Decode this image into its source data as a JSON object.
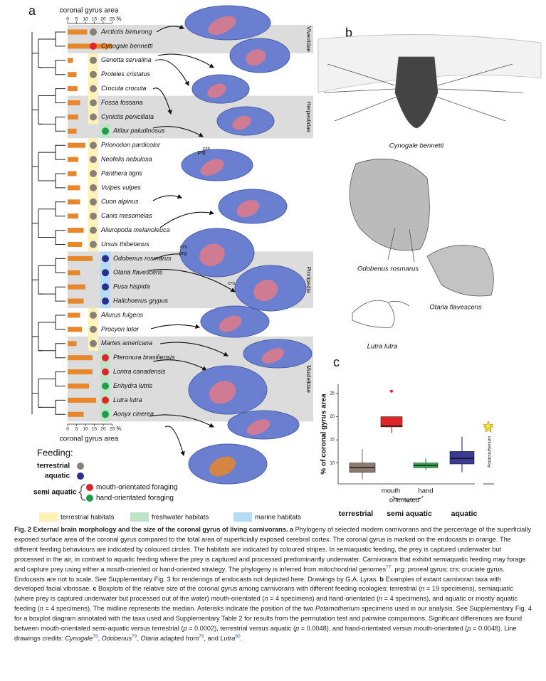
{
  "panel_labels": [
    "a",
    "b",
    "c"
  ],
  "panel_a": {
    "axis_title": "coronal gyrus area",
    "axis_ticks": [
      0,
      5,
      10,
      15,
      20,
      25
    ],
    "axis_unit": "%",
    "bar_color": "#e8862a",
    "clades": [
      {
        "family": "Viverridae",
        "species": [
          {
            "name": "Arctictis binturong",
            "area": 11,
            "circle_color": "#8a7f78",
            "stripe_color": null
          },
          {
            "name": "Cynogale bennetti",
            "area": 25,
            "circle_color": "#e0242a",
            "stripe_color": null
          }
        ]
      },
      {
        "species": [
          {
            "name": "Genetta servalina",
            "area": 3,
            "circle_color": "#8a7f78",
            "stripe_color": "#fdf3b8"
          },
          {
            "name": "Proteles cristatus",
            "area": 5,
            "circle_color": "#8a7f78",
            "stripe_color": "#fdf3b8"
          },
          {
            "name": "Crocuta crocuta",
            "area": 5.5,
            "circle_color": "#8a7f78",
            "stripe_color": "#fdf3b8"
          }
        ]
      },
      {
        "family": "Herpestidae",
        "species": [
          {
            "name": "Fossa fossana",
            "area": 7,
            "circle_color": "#8a7f78",
            "stripe_color": "#fdf3b8"
          },
          {
            "name": "Cynictis penicillata",
            "area": 6,
            "circle_color": "#8a7f78",
            "stripe_color": "#fdf3b8"
          },
          {
            "name": "Atilax paludinosus",
            "area": 5,
            "circle_color": "#1e9e4a",
            "stripe_color": "#bfe3c8"
          }
        ]
      },
      {
        "species": [
          {
            "name": "Prionodon pardicolor",
            "area": 10,
            "circle_color": "#8a7f78",
            "stripe_color": "#fdf3b8"
          },
          {
            "name": "Neofelis nebulosa",
            "area": 6,
            "circle_color": "#8a7f78",
            "stripe_color": "#fdf3b8"
          },
          {
            "name": "Panthera tigris",
            "area": 5,
            "circle_color": "#8a7f78",
            "stripe_color": "#fdf3b8"
          },
          {
            "name": "Vulpes vulpes",
            "area": 7,
            "circle_color": "#8a7f78",
            "stripe_color": "#fdf3b8"
          },
          {
            "name": "Cuon alpinus",
            "area": 7,
            "circle_color": "#8a7f78",
            "stripe_color": "#fdf3b8"
          },
          {
            "name": "Canis mesomelas",
            "area": 6,
            "circle_color": "#8a7f78",
            "stripe_color": "#fdf3b8"
          },
          {
            "name": "Ailuropoda melanoleuca",
            "area": 9,
            "circle_color": "#8a7f78",
            "stripe_color": "#fdf3b8"
          },
          {
            "name": "Ursus thibetanus",
            "area": 8,
            "circle_color": "#8a7f78",
            "stripe_color": "#fdf3b8"
          }
        ]
      },
      {
        "family": "Pinnipedia",
        "species": [
          {
            "name": "Odobenus rosmarus",
            "area": 14,
            "circle_color": "#2c2e8c",
            "stripe_color": "#b5dcf3"
          },
          {
            "name": "Otaria flavescens",
            "area": 7,
            "circle_color": "#2c2e8c",
            "stripe_color": "#b5dcf3"
          },
          {
            "name": "Pusa hispida",
            "area": 10,
            "circle_color": "#2c2e8c",
            "stripe_color": "#b5dcf3"
          },
          {
            "name": "Halichoerus grypus",
            "area": 9,
            "circle_color": "#2c2e8c",
            "stripe_color": "#b5dcf3"
          }
        ]
      },
      {
        "species": [
          {
            "name": "Ailurus fulgens",
            "area": 7,
            "circle_color": "#8a7f78",
            "stripe_color": "#fdf3b8"
          },
          {
            "name": "Procyon lotor",
            "area": 8,
            "circle_color": "#8a7f78",
            "stripe_color": "#fdf3b8"
          }
        ]
      },
      {
        "family": "Mustelidae",
        "species": [
          {
            "name": "Martes americana",
            "area": 5,
            "circle_color": "#8a7f78",
            "stripe_color": "#fdf3b8"
          },
          {
            "name": "Pteronura brasiliensis",
            "area": 14,
            "circle_color": "#e0242a",
            "stripe_color": "#bfe3c8"
          },
          {
            "name": "Lontra canadensis",
            "area": 14,
            "circle_color": "#e0242a",
            "stripe_color": "#bfe3c8"
          },
          {
            "name": "Enhydra lutris",
            "area": 12,
            "circle_color": "#1e9e4a",
            "stripe_color": "#bfe3c8"
          },
          {
            "name": "Lutra lutra",
            "area": 16,
            "circle_color": "#e0242a",
            "stripe_color": "#bfe3c8"
          },
          {
            "name": "Aonyx cinerea",
            "area": 9,
            "circle_color": "#1e9e4a",
            "stripe_color": "#bfe3c8"
          }
        ]
      }
    ],
    "brain_labels": [
      "prg",
      "crs",
      "crs",
      "prg",
      "crs"
    ],
    "feeding_legend": {
      "title": "Feeding:",
      "terrestrial": "terrestrial",
      "aquatic": "aquatic",
      "semi_aquatic": "semi aquatic",
      "mouth": "mouth-orientated foraging",
      "hand": "hand-orientated foraging"
    },
    "habitat_legend": [
      {
        "label": "terrestrial habitats",
        "color": "#fdf3b8"
      },
      {
        "label": "freshwater habitats",
        "color": "#bfe3c8"
      },
      {
        "label": "marine habitats",
        "color": "#b5dcf3"
      }
    ]
  },
  "panel_b": {
    "labels": [
      "Cynogale bennetti",
      "Odobenus rosmarus",
      "Otaria flavescens",
      "Lutra lutra"
    ]
  },
  "panel_c": {
    "ylabel": "% of coronal gyrus area",
    "ylim": [
      5.5,
      27
    ],
    "yticks": [
      10,
      15,
      20,
      25
    ],
    "boxes": [
      {
        "color": "#8a7a70",
        "min": 6.5,
        "q1": 8,
        "median": 9,
        "q3": 10,
        "max": 13,
        "outliers": []
      },
      {
        "color": "#e0242a",
        "min": 16.5,
        "q1": 17.8,
        "median": 18,
        "q3": 20,
        "max": 20,
        "outliers": [
          25.5
        ]
      },
      {
        "color": "#2fa84f",
        "min": 8.5,
        "q1": 9,
        "median": 9.5,
        "q3": 10,
        "max": 11,
        "outliers": []
      },
      {
        "color": "#3a3a92",
        "min": 8,
        "q1": 9.8,
        "median": 11,
        "q3": 12.5,
        "max": 15.7,
        "outliers": []
      }
    ],
    "sub_labels": [
      "mouth",
      "orientated",
      "hand"
    ],
    "group_labels": [
      "terrestrial",
      "semi aquatic",
      "aquatic"
    ],
    "potamotherium": {
      "label": "Potamotherium",
      "values": [
        17.5,
        18
      ],
      "color": "#f5e43a"
    }
  },
  "caption": {
    "runs": [
      {
        "t": "Fig. 2 External brain morphology and the size of the coronal gyrus of living carnivorans. a",
        "s": "b"
      },
      {
        "t": " Phylogeny of selected modern carnivorans and the percentage of the superficially exposed surface area of the coronal gyrus compared to the total area of superficially exposed cerebral cortex. The coronal gyrus is marked on the endocasts in orange. The different feeding behaviours are indicated by coloured circles. The habitats are indicated by coloured stripes. In semiaquatic feeding, the prey is captured underwater but processed in the air, in contrast to aquatic feeding where the prey is captured and processed predominantly underwater. Carnivorans that exhibit semiaquatic feeding may forage and capture prey using either a mouth-oriented or hand-oriented strategy. The phylogeny is inferred from mitochondrial genomes",
        "s": "n"
      },
      {
        "t": "77",
        "s": "sup"
      },
      {
        "t": ". prg: proreal gyrus; crs: cruciate gyrus. Endocasts are not to scale. See Supplementary Fig. 3 for renderings of endocasts not depicted here. Drawings by G.A. Lyras. ",
        "s": "n"
      },
      {
        "t": "b",
        "s": "b"
      },
      {
        "t": " Examples of extant carnivoran taxa with developed facial vibrissae. ",
        "s": "n"
      },
      {
        "t": "c",
        "s": "b"
      },
      {
        "t": " Boxplots of the relative size of the coronal gyrus among carnivorans with different feeding ecologies: terrestrial (",
        "s": "n"
      },
      {
        "t": "n",
        "s": "i"
      },
      {
        "t": " = 19 specimens), semiaquatic (where prey is captured underwater but processed out of the water) mouth-orientated (",
        "s": "n"
      },
      {
        "t": "n",
        "s": "i"
      },
      {
        "t": " = 4 specimens) and hand-orientated (",
        "s": "n"
      },
      {
        "t": "n",
        "s": "i"
      },
      {
        "t": " = 4 specimens), and aquatic or mostly aquatic feeding (",
        "s": "n"
      },
      {
        "t": "n",
        "s": "i"
      },
      {
        "t": " = 4 specimens). The midline represents the median. Asterisks indicate the position of the two ",
        "s": "n"
      },
      {
        "t": "Potamotherium",
        "s": "i"
      },
      {
        "t": " specimens used in our analysis. See Supplementary Fig. 4 for a boxplot diagram annotated with the taxa used and Supplementary Table 2 for results from the permutation test and pairwise comparisons. Significant differences are found between mouth-orientated semi-aquatic versus terrestrial (",
        "s": "n"
      },
      {
        "t": "p",
        "s": "i"
      },
      {
        "t": " = 0.0002), terrestrial versus aquatic (",
        "s": "n"
      },
      {
        "t": "p",
        "s": "i"
      },
      {
        "t": " = 0.0048), and hand-orientated versus mouth-orientated (",
        "s": "n"
      },
      {
        "t": "p",
        "s": "i"
      },
      {
        "t": " = 0.0048). Line drawings credits: ",
        "s": "n"
      },
      {
        "t": "Cynogale",
        "s": "i"
      },
      {
        "t": "78",
        "s": "sup"
      },
      {
        "t": ", ",
        "s": "n"
      },
      {
        "t": "Odobenus",
        "s": "i"
      },
      {
        "t": "79",
        "s": "sup"
      },
      {
        "t": ", ",
        "s": "n"
      },
      {
        "t": "Otaria",
        "s": "i"
      },
      {
        "t": " adapted from",
        "s": "n"
      },
      {
        "t": "79",
        "s": "sup"
      },
      {
        "t": ", and ",
        "s": "n"
      },
      {
        "t": "Lutra",
        "s": "i"
      },
      {
        "t": "80",
        "s": "sup"
      },
      {
        "t": ".",
        "s": "n"
      }
    ]
  }
}
